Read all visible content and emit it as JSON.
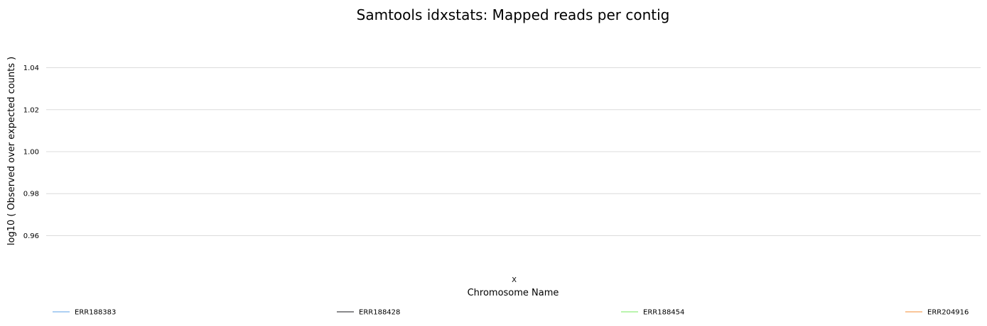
{
  "chart_data": {
    "type": "line",
    "title": "Samtools idxstats: Mapped reads per contig",
    "xlabel": "Chromosome Name",
    "ylabel": "log10 ( Observed over expected counts )",
    "categories": [
      "X"
    ],
    "ylim": [
      0.948,
      1.052
    ],
    "yticks": [
      "0.96",
      "0.98",
      "1.00",
      "1.02",
      "1.04"
    ],
    "ytick_values": [
      0.96,
      0.98,
      1.0,
      1.02,
      1.04
    ],
    "grid": true,
    "legend_position": "bottom",
    "series": [
      {
        "name": "ERR188383",
        "color": "#7cb5ec",
        "values": [
          null
        ]
      },
      {
        "name": "ERR188428",
        "color": "#434348",
        "values": [
          null
        ]
      },
      {
        "name": "ERR188454",
        "color": "#90ed7d",
        "values": [
          null
        ]
      },
      {
        "name": "ERR204916",
        "color": "#f7a35c",
        "values": [
          null
        ]
      }
    ]
  }
}
